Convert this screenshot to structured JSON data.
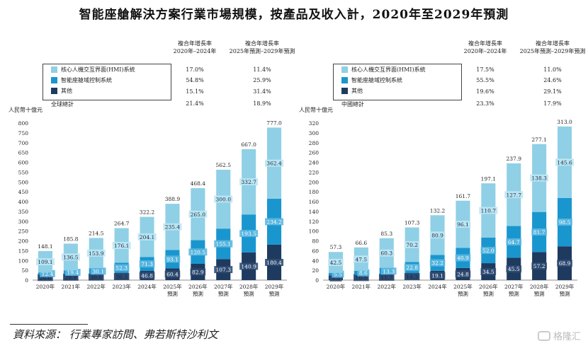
{
  "title": "智能座艙解決方案行業市場規模，按產品及收入計，2020年至2029年預測",
  "source": "資料來源： 行業專家訪問、弗若斯特沙利文",
  "logo_text": "格隆汇",
  "colors": {
    "hmi": "#8fd0e6",
    "domain": "#1a96cf",
    "other": "#1e3a5f"
  },
  "chart_data": [
    {
      "type": "bar",
      "name": "global",
      "ylabel": "人民幣十億元",
      "ylim": [
        0,
        800
      ],
      "yticks": [
        0,
        50,
        100,
        150,
        200,
        250,
        300,
        350,
        400,
        450,
        500,
        550,
        600,
        650,
        700,
        750,
        800
      ],
      "categories": [
        "2020年",
        "2021年",
        "2022年",
        "2023年",
        "2024年",
        "2025年\n預測",
        "2026年\n預測",
        "2027年\n預測",
        "2028年\n預測",
        "2029年\n預測"
      ],
      "totals": [
        148.1,
        185.8,
        214.5,
        264.7,
        322.2,
        388.9,
        468.4,
        562.5,
        667.0,
        777.0
      ],
      "series": [
        {
          "name": "其他",
          "key": "other",
          "values": [
            26.6,
            29.9,
            30.6,
            36.3,
            46.8,
            60.4,
            82.9,
            107.3,
            140.9,
            180.4
          ]
        },
        {
          "name": "智能座艙域控制系統",
          "key": "domain",
          "values": [
            12.4,
            19.4,
            30.1,
            52.3,
            71.3,
            93.1,
            120.5,
            155.1,
            193.5,
            234.2
          ]
        },
        {
          "name": "核心人機交互界面(HMI)系統",
          "key": "hmi",
          "values": [
            109.1,
            136.5,
            153.9,
            176.1,
            204.1,
            235.4,
            265.0,
            300.0,
            332.7,
            362.4
          ]
        }
      ],
      "legend_table": {
        "col1_header": [
          "複合年增長率",
          "2020年–2024年"
        ],
        "col2_header": [
          "複合年增長率",
          "2025年預測–2029年預測"
        ],
        "rows": [
          {
            "label": "核心人機交互界面(HMI)系統",
            "key": "hmi",
            "cagr1": "17.0%",
            "cagr2": "11.4%"
          },
          {
            "label": "智能座艙域控制系統",
            "key": "domain",
            "cagr1": "54.8%",
            "cagr2": "25.9%"
          },
          {
            "label": "其他",
            "key": "other",
            "cagr1": "15.1%",
            "cagr2": "31.4%"
          }
        ],
        "total": {
          "label": "全球總計",
          "cagr1": "21.4%",
          "cagr2": "18.9%"
        }
      }
    },
    {
      "type": "bar",
      "name": "china",
      "ylabel": "人民幣十億元",
      "ylim": [
        0,
        320
      ],
      "yticks": [
        0,
        20,
        40,
        60,
        80,
        100,
        120,
        140,
        160,
        180,
        200,
        220,
        240,
        260,
        280,
        300,
        320
      ],
      "categories": [
        "2020年",
        "2021年",
        "2022年",
        "2023年",
        "2024年",
        "2025年\n預測",
        "2026年\n預測",
        "2027年\n預測",
        "2028年\n預測",
        "2029年\n預測"
      ],
      "totals": [
        57.3,
        66.6,
        85.3,
        107.3,
        132.2,
        161.7,
        197.1,
        237.9,
        277.1,
        313.0
      ],
      "series": [
        {
          "name": "其他",
          "key": "other",
          "values": [
            9.3,
            10.5,
            11.7,
            14.3,
            19.1,
            24.8,
            34.5,
            45.5,
            57.2,
            68.9
          ]
        },
        {
          "name": "智能座艙域控制系統",
          "key": "domain",
          "values": [
            5.5,
            8.6,
            13.3,
            22.8,
            32.2,
            40.9,
            52.0,
            64.7,
            81.7,
            98.5
          ]
        },
        {
          "name": "核心人機交互界面(HMI)系統",
          "key": "hmi",
          "values": [
            42.5,
            47.5,
            60.3,
            70.2,
            80.9,
            96.1,
            110.7,
            127.7,
            138.3,
            145.6
          ]
        }
      ],
      "legend_table": {
        "col1_header": [
          "複合年增長率",
          "2020年–2024年"
        ],
        "col2_header": [
          "複合年增長率",
          "2025年預測–2029年預測"
        ],
        "rows": [
          {
            "label": "核心人機交互界面(HMI)系統",
            "key": "hmi",
            "cagr1": "17.5%",
            "cagr2": "11.0%"
          },
          {
            "label": "智能座艙域控制系統",
            "key": "domain",
            "cagr1": "55.5%",
            "cagr2": "24.6%"
          },
          {
            "label": "其他",
            "key": "other",
            "cagr1": "19.6%",
            "cagr2": "29.1%"
          }
        ],
        "total": {
          "label": "中國總計",
          "cagr1": "23.3%",
          "cagr2": "17.9%"
        }
      }
    }
  ]
}
